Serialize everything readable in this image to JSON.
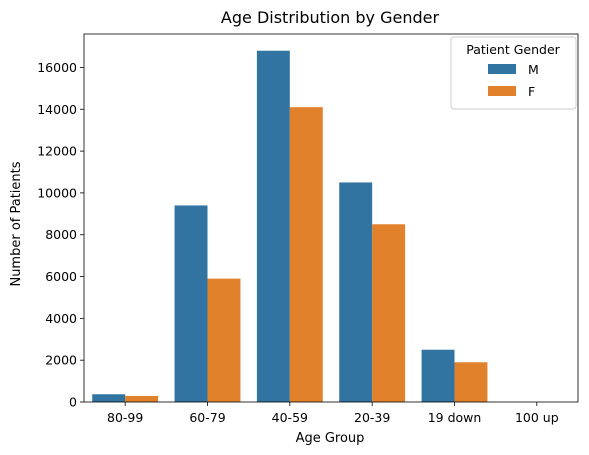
{
  "chart_data": {
    "type": "bar",
    "title": "Age Distribution by Gender",
    "xlabel": "Age Group",
    "ylabel": "Number of Patients",
    "categories": [
      "80-99",
      "60-79",
      "40-59",
      "20-39",
      "19 down",
      "100 up"
    ],
    "series": [
      {
        "name": "M",
        "color": "#3274a1",
        "values": [
          370,
          9400,
          16800,
          10500,
          2500,
          0
        ]
      },
      {
        "name": "F",
        "color": "#e1812c",
        "values": [
          290,
          5900,
          14100,
          8500,
          1900,
          0
        ]
      }
    ],
    "ylim": [
      0,
      17600
    ],
    "yticks": [
      0,
      2000,
      4000,
      6000,
      8000,
      10000,
      12000,
      14000,
      16000
    ],
    "grid": false,
    "legend": {
      "title": "Patient Gender",
      "placement": "top-right"
    }
  }
}
